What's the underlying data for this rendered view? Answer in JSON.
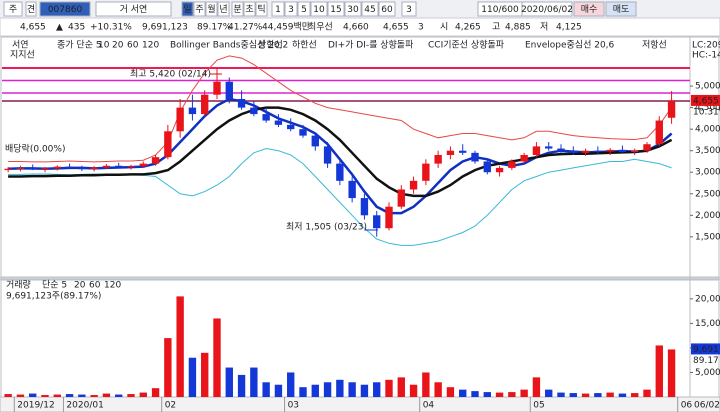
{
  "toolbar": {
    "row1": [
      "주",
      "견",
      "007860",
      "거 서연",
      "일",
      "주",
      "월",
      "년",
      "분",
      "초",
      "틱",
      "1",
      "3",
      "5",
      "10",
      "15",
      "30",
      "45",
      "60",
      "3",
      "110/600",
      "2020/06/02",
      "매수",
      "매도"
    ],
    "row2": [
      "4,655",
      "▲",
      "435",
      "+10.31%",
      "9,691,123",
      "89.17%",
      "41.27%",
      "44,459백만",
      "최우선",
      "4,660",
      "4,655",
      "3",
      "시",
      "4,265",
      "고",
      "4,885",
      "저",
      "4,125"
    ]
  },
  "chart_data": [
    {
      "type": "candlestick",
      "legend_items": [
        {
          "text": "서연",
          "color": "#222"
        },
        {
          "text": "종가 단순 5",
          "color": "#e0307a"
        },
        {
          "text": "20",
          "color": "#e89a10"
        },
        {
          "text": "60",
          "color": "#30a030"
        },
        {
          "text": "120",
          "color": "#777"
        },
        {
          "text": "DI+가 DI-를 상향돌파",
          "color": "#e0307a"
        },
        {
          "text": "CCI기준선 상향돌파",
          "color": "#8030a0"
        },
        {
          "text": "Envelope중심선 20,6",
          "color": "#d020c0"
        },
        {
          "text": "저항선",
          "color": "#222"
        },
        {
          "text": "지지선",
          "color": "#222"
        }
      ],
      "indicators_right": [
        "LC:209",
        "HC:-14"
      ],
      "annotations": [
        "최고 5,420 (02/14)",
        "최저 1,505 (03/23)",
        "배당락(0.00%)"
      ],
      "open": [
        3050,
        3080,
        3100,
        3060,
        3090,
        3130,
        3100,
        3070,
        3110,
        3150,
        3120,
        3140,
        3200,
        3350,
        3950,
        4500,
        4350,
        4800,
        5100,
        4700,
        4500,
        4350,
        4200,
        4100,
        4000,
        3850,
        3600,
        3200,
        2800,
        2400,
        2000,
        1700,
        2200,
        2600,
        2800,
        3200,
        3400,
        3500,
        3450,
        3250,
        3000,
        3100,
        3250,
        3400,
        3600,
        3550,
        3500,
        3450,
        3500,
        3480,
        3520,
        3470,
        3500,
        3650,
        4265,
        null
      ],
      "high": [
        3120,
        3150,
        3180,
        3120,
        3160,
        3200,
        3150,
        3140,
        3190,
        3220,
        3170,
        3250,
        3400,
        4100,
        4700,
        4800,
        4900,
        5420,
        5200,
        4900,
        4650,
        4500,
        4350,
        4250,
        4100,
        3900,
        3700,
        3300,
        2900,
        2500,
        2100,
        2300,
        2700,
        2900,
        3300,
        3500,
        3600,
        3650,
        3500,
        3300,
        3150,
        3300,
        3450,
        3700,
        3700,
        3650,
        3600,
        3550,
        3600,
        3560,
        3620,
        3550,
        3700,
        4300,
        4885,
        null
      ],
      "low": [
        3000,
        3020,
        3050,
        3000,
        3040,
        3080,
        3030,
        3020,
        3070,
        3100,
        3060,
        3100,
        3150,
        3300,
        3800,
        4200,
        4300,
        4700,
        4600,
        4450,
        4300,
        4150,
        4050,
        3950,
        3800,
        3500,
        3100,
        2700,
        2300,
        1900,
        1505,
        1650,
        2150,
        2500,
        2700,
        3100,
        3300,
        3400,
        3200,
        2950,
        2900,
        3050,
        3200,
        3350,
        3500,
        3450,
        3400,
        3380,
        3420,
        3400,
        3450,
        3400,
        3450,
        3600,
        4125,
        null
      ],
      "close": [
        3080,
        3100,
        3060,
        3090,
        3130,
        3100,
        3070,
        3110,
        3150,
        3120,
        3140,
        3200,
        3350,
        3950,
        4500,
        4350,
        4800,
        5100,
        4700,
        4500,
        4350,
        4200,
        4100,
        4000,
        3850,
        3600,
        3200,
        2800,
        2400,
        2000,
        1700,
        2200,
        2600,
        2800,
        3200,
        3400,
        3500,
        3450,
        3250,
        3000,
        3100,
        3250,
        3400,
        3600,
        3550,
        3500,
        3450,
        3500,
        3480,
        3520,
        3470,
        3500,
        3650,
        4200,
        4655,
        null
      ],
      "up_color": "#e8141a",
      "down_color": "#1438d8",
      "series": [
        {
          "name": "상한선",
          "color": "#e84848",
          "width": 1,
          "values": [
            3250,
            3250,
            3240,
            3240,
            3250,
            3260,
            3250,
            3240,
            3250,
            3260,
            3260,
            3280,
            3400,
            3700,
            4400,
            4900,
            5300,
            5600,
            5700,
            5650,
            5500,
            5300,
            5100,
            4900,
            4750,
            4600,
            4500,
            4450,
            4400,
            4350,
            4300,
            4250,
            4200,
            4000,
            3900,
            3800,
            3850,
            3900,
            3900,
            3850,
            3800,
            3750,
            3800,
            3950,
            3950,
            3900,
            3850,
            3820,
            3800,
            3780,
            3770,
            3760,
            3800,
            4100,
            4500,
            null
          ]
        },
        {
          "name": "하한선",
          "color": "#38b8d8",
          "width": 1,
          "values": [
            2950,
            2950,
            2960,
            2960,
            2950,
            2940,
            2950,
            2960,
            2950,
            2940,
            2940,
            2930,
            2900,
            2700,
            2500,
            2450,
            2550,
            2700,
            2900,
            3200,
            3450,
            3550,
            3500,
            3400,
            3200,
            2900,
            2600,
            2300,
            2000,
            1700,
            1450,
            1350,
            1300,
            1300,
            1350,
            1400,
            1500,
            1600,
            1750,
            2000,
            2300,
            2600,
            2800,
            2900,
            3000,
            3050,
            3100,
            3150,
            3200,
            3250,
            3250,
            3300,
            3250,
            3200,
            3100,
            null
          ]
        },
        {
          "name": "10",
          "color": "#1030c0",
          "width": 2.5,
          "values": [
            3080,
            3090,
            3090,
            3080,
            3090,
            3100,
            3100,
            3090,
            3100,
            3110,
            3120,
            3130,
            3200,
            3400,
            3700,
            4000,
            4300,
            4550,
            4700,
            4650,
            4550,
            4400,
            4250,
            4150,
            4050,
            3900,
            3650,
            3300,
            2950,
            2550,
            2200,
            2050,
            2050,
            2200,
            2450,
            2750,
            3050,
            3250,
            3350,
            3300,
            3200,
            3150,
            3200,
            3350,
            3450,
            3500,
            3480,
            3460,
            3470,
            3480,
            3490,
            3480,
            3500,
            3650,
            3900,
            null
          ]
        },
        {
          "name": "Bollinger Bands중심선 20,2",
          "color": "#111111",
          "width": 2.5,
          "values": [
            2900,
            2900,
            2910,
            2910,
            2920,
            2920,
            2930,
            2930,
            2940,
            2940,
            2950,
            2950,
            2980,
            3050,
            3250,
            3500,
            3750,
            4000,
            4200,
            4350,
            4450,
            4500,
            4500,
            4450,
            4350,
            4200,
            4000,
            3750,
            3450,
            3150,
            2850,
            2650,
            2500,
            2450,
            2450,
            2550,
            2700,
            2900,
            3050,
            3150,
            3200,
            3250,
            3300,
            3350,
            3400,
            3420,
            3430,
            3430,
            3440,
            3450,
            3460,
            3470,
            3500,
            3600,
            3750,
            null
          ]
        }
      ],
      "hlines": [
        {
          "value": 5420,
          "color": "#f01858"
        },
        {
          "value": 5130,
          "color": "#e020d0"
        },
        {
          "value": 4840,
          "color": "#e020d0"
        },
        {
          "value": 4655,
          "color": "#8a1a50"
        }
      ],
      "last_price": {
        "value": 4655,
        "label": "4,655"
      },
      "last_change": "10.31%",
      "ylim": [
        730,
        6070
      ],
      "yticks": [
        {
          "value": 1500,
          "label": "1,500"
        },
        {
          "value": 2000,
          "label": "2,000"
        },
        {
          "value": 2500,
          "label": "2,500"
        },
        {
          "value": 3000,
          "label": "3,000"
        },
        {
          "value": 3500,
          "label": "3,500"
        },
        {
          "value": 4000,
          "label": "4,000"
        },
        {
          "value": 4500,
          "label": "4,500"
        },
        {
          "value": 5000,
          "label": "5,000"
        }
      ]
    },
    {
      "type": "bar",
      "legend_items": [
        {
          "text": "거래량",
          "color": "#222"
        },
        {
          "text": "단순 5",
          "color": "#e0307a"
        },
        {
          "text": "20",
          "color": "#e89a10"
        },
        {
          "text": "60",
          "color": "#30a030"
        },
        {
          "text": "120",
          "color": "#777"
        }
      ],
      "subtitle": "9,691,123주(89.17%)",
      "categories": [
        null,
        "2019/12",
        null,
        null,
        null,
        "2020/01",
        null,
        null,
        null,
        null,
        null,
        null,
        null,
        "02",
        null,
        null,
        null,
        null,
        null,
        null,
        null,
        null,
        null,
        "03",
        null,
        null,
        null,
        null,
        null,
        null,
        null,
        null,
        null,
        null,
        "04",
        null,
        null,
        null,
        null,
        null,
        null,
        null,
        null,
        "05",
        null,
        null,
        null,
        null,
        null,
        null,
        null,
        null,
        null,
        null,
        null,
        "06"
      ],
      "values": [
        600,
        500,
        700,
        400,
        500,
        600,
        500,
        400,
        700,
        500,
        600,
        900,
        1800,
        12000,
        20500,
        8000,
        9000,
        16000,
        6000,
        4500,
        6000,
        3000,
        2500,
        5000,
        2000,
        2500,
        3000,
        3500,
        3000,
        2500,
        3000,
        3500,
        4000,
        2500,
        5000,
        3000,
        2000,
        1500,
        1200,
        1000,
        900,
        1000,
        1500,
        4000,
        1500,
        900,
        800,
        700,
        800,
        900,
        700,
        800,
        1500,
        10500,
        9691,
        null
      ],
      "last_volume": {
        "value": 9691,
        "label": "9,691"
      },
      "last_ratio": "89.17",
      "x_end_label": "06/02",
      "ylim": [
        0,
        21800
      ],
      "yticks": [
        {
          "value": 5000,
          "label": "5,000"
        },
        {
          "value": 10000,
          "label": "10,000"
        },
        {
          "value": 15000,
          "label": "15,000"
        },
        {
          "value": 20000,
          "label": "20,000"
        }
      ]
    }
  ]
}
